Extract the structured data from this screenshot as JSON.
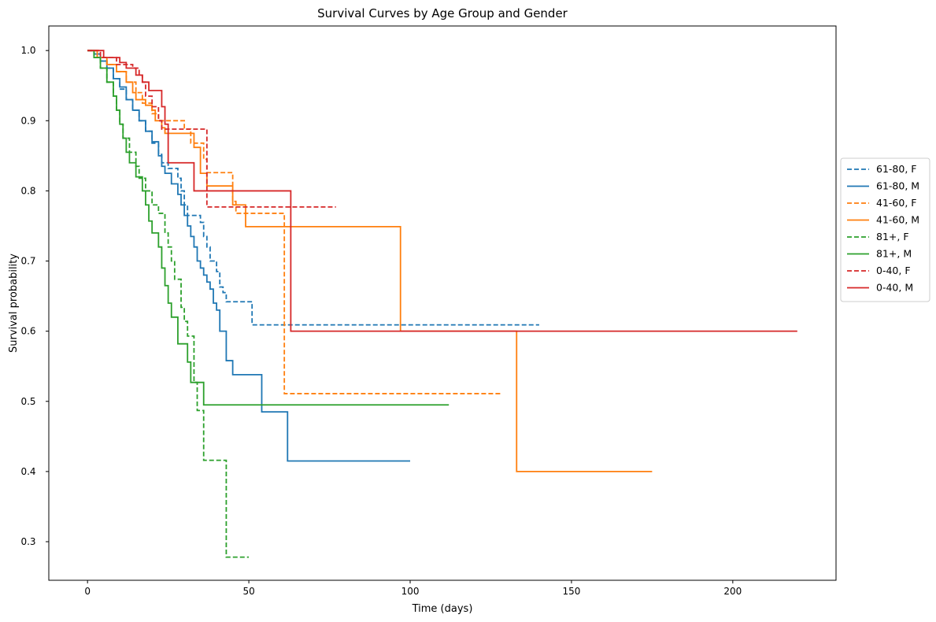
{
  "chart_data": {
    "type": "line",
    "subtype": "step",
    "title": "Survival Curves by Age Group and Gender",
    "xlabel": "Time (days)",
    "ylabel": "Survival probability",
    "xlim": [
      -12,
      232
    ],
    "ylim": [
      0.245,
      1.035
    ],
    "xticks": [
      0,
      50,
      100,
      150,
      200
    ],
    "yticks": [
      0.3,
      0.4,
      0.5,
      0.6,
      0.7,
      0.8,
      0.9,
      1.0
    ],
    "grid": false,
    "legend_position": "right outside",
    "series": [
      {
        "name": "61-80, F",
        "color": "#1f77b4",
        "dash": "dashed",
        "points": [
          [
            0,
            1.0
          ],
          [
            2,
            0.995
          ],
          [
            4,
            0.985
          ],
          [
            6,
            0.975
          ],
          [
            8,
            0.96
          ],
          [
            10,
            0.945
          ],
          [
            12,
            0.93
          ],
          [
            14,
            0.915
          ],
          [
            16,
            0.9
          ],
          [
            18,
            0.885
          ],
          [
            20,
            0.868
          ],
          [
            22,
            0.852
          ],
          [
            23,
            0.84
          ],
          [
            25,
            0.832
          ],
          [
            28,
            0.818
          ],
          [
            29,
            0.8
          ],
          [
            30,
            0.78
          ],
          [
            31,
            0.765
          ],
          [
            35,
            0.755
          ],
          [
            36,
            0.735
          ],
          [
            37,
            0.72
          ],
          [
            38,
            0.7
          ],
          [
            40,
            0.685
          ],
          [
            41,
            0.663
          ],
          [
            42,
            0.655
          ],
          [
            43,
            0.642
          ],
          [
            51,
            0.609
          ],
          [
            140,
            0.609
          ]
        ]
      },
      {
        "name": "61-80, M",
        "color": "#1f77b4",
        "dash": "solid",
        "points": [
          [
            0,
            1.0
          ],
          [
            2,
            0.995
          ],
          [
            4,
            0.985
          ],
          [
            6,
            0.975
          ],
          [
            8,
            0.96
          ],
          [
            10,
            0.948
          ],
          [
            12,
            0.93
          ],
          [
            14,
            0.915
          ],
          [
            16,
            0.9
          ],
          [
            18,
            0.885
          ],
          [
            20,
            0.87
          ],
          [
            22,
            0.85
          ],
          [
            23,
            0.835
          ],
          [
            24,
            0.825
          ],
          [
            26,
            0.81
          ],
          [
            28,
            0.795
          ],
          [
            29,
            0.78
          ],
          [
            30,
            0.765
          ],
          [
            31,
            0.75
          ],
          [
            32,
            0.735
          ],
          [
            33,
            0.72
          ],
          [
            34,
            0.7
          ],
          [
            35,
            0.69
          ],
          [
            36,
            0.68
          ],
          [
            37,
            0.67
          ],
          [
            38,
            0.66
          ],
          [
            39,
            0.64
          ],
          [
            40,
            0.63
          ],
          [
            41,
            0.6
          ],
          [
            43,
            0.558
          ],
          [
            45,
            0.538
          ],
          [
            54,
            0.485
          ],
          [
            62,
            0.415
          ],
          [
            100,
            0.415
          ]
        ]
      },
      {
        "name": "41-60, F",
        "color": "#ff7f0e",
        "dash": "dashed",
        "points": [
          [
            0,
            1.0
          ],
          [
            3,
            0.99
          ],
          [
            6,
            0.98
          ],
          [
            9,
            0.97
          ],
          [
            12,
            0.955
          ],
          [
            15,
            0.94
          ],
          [
            17,
            0.925
          ],
          [
            20,
            0.91
          ],
          [
            22,
            0.9
          ],
          [
            30,
            0.888
          ],
          [
            32,
            0.868
          ],
          [
            36,
            0.845
          ],
          [
            37,
            0.826
          ],
          [
            45,
            0.785
          ],
          [
            46,
            0.768
          ],
          [
            61,
            0.511
          ],
          [
            128,
            0.511
          ]
        ]
      },
      {
        "name": "41-60, M",
        "color": "#ff7f0e",
        "dash": "solid",
        "points": [
          [
            0,
            1.0
          ],
          [
            3,
            0.99
          ],
          [
            6,
            0.98
          ],
          [
            9,
            0.97
          ],
          [
            12,
            0.955
          ],
          [
            14,
            0.94
          ],
          [
            15,
            0.93
          ],
          [
            18,
            0.922
          ],
          [
            20,
            0.915
          ],
          [
            21,
            0.9
          ],
          [
            23,
            0.89
          ],
          [
            24,
            0.882
          ],
          [
            33,
            0.862
          ],
          [
            35,
            0.825
          ],
          [
            37,
            0.807
          ],
          [
            45,
            0.78
          ],
          [
            49,
            0.749
          ],
          [
            97,
            0.6
          ],
          [
            133,
            0.4
          ],
          [
            175,
            0.4
          ]
        ]
      },
      {
        "name": "81+, F",
        "color": "#2ca02c",
        "dash": "dashed",
        "points": [
          [
            0,
            1.0
          ],
          [
            2,
            0.99
          ],
          [
            4,
            0.975
          ],
          [
            6,
            0.955
          ],
          [
            8,
            0.935
          ],
          [
            9,
            0.915
          ],
          [
            10,
            0.895
          ],
          [
            11,
            0.875
          ],
          [
            13,
            0.855
          ],
          [
            15,
            0.835
          ],
          [
            16,
            0.818
          ],
          [
            18,
            0.8
          ],
          [
            20,
            0.78
          ],
          [
            22,
            0.768
          ],
          [
            24,
            0.74
          ],
          [
            25,
            0.72
          ],
          [
            26,
            0.7
          ],
          [
            27,
            0.674
          ],
          [
            29,
            0.634
          ],
          [
            30,
            0.614
          ],
          [
            31,
            0.593
          ],
          [
            33,
            0.527
          ],
          [
            34,
            0.487
          ],
          [
            36,
            0.416
          ],
          [
            43,
            0.278
          ],
          [
            50,
            0.278
          ]
        ]
      },
      {
        "name": "81+, M",
        "color": "#2ca02c",
        "dash": "solid",
        "points": [
          [
            0,
            1.0
          ],
          [
            2,
            0.99
          ],
          [
            4,
            0.975
          ],
          [
            6,
            0.955
          ],
          [
            8,
            0.935
          ],
          [
            9,
            0.915
          ],
          [
            10,
            0.895
          ],
          [
            11,
            0.875
          ],
          [
            12,
            0.855
          ],
          [
            13,
            0.84
          ],
          [
            15,
            0.82
          ],
          [
            17,
            0.8
          ],
          [
            18,
            0.78
          ],
          [
            19,
            0.757
          ],
          [
            20,
            0.74
          ],
          [
            22,
            0.72
          ],
          [
            23,
            0.69
          ],
          [
            24,
            0.665
          ],
          [
            25,
            0.64
          ],
          [
            26,
            0.62
          ],
          [
            28,
            0.582
          ],
          [
            31,
            0.556
          ],
          [
            32,
            0.527
          ],
          [
            36,
            0.495
          ],
          [
            112,
            0.495
          ]
        ]
      },
      {
        "name": "0-40, F",
        "color": "#d62728",
        "dash": "dashed",
        "points": [
          [
            0,
            1.0
          ],
          [
            4,
            0.99
          ],
          [
            9,
            0.98
          ],
          [
            14,
            0.975
          ],
          [
            16,
            0.965
          ],
          [
            17,
            0.955
          ],
          [
            18,
            0.935
          ],
          [
            20,
            0.92
          ],
          [
            22,
            0.9
          ],
          [
            23,
            0.888
          ],
          [
            37,
            0.777
          ],
          [
            77,
            0.777
          ]
        ]
      },
      {
        "name": "0-40, M",
        "color": "#d62728",
        "dash": "solid",
        "points": [
          [
            0,
            1.0
          ],
          [
            5,
            0.99
          ],
          [
            10,
            0.983
          ],
          [
            12,
            0.975
          ],
          [
            15,
            0.965
          ],
          [
            17,
            0.955
          ],
          [
            19,
            0.943
          ],
          [
            23,
            0.92
          ],
          [
            24,
            0.895
          ],
          [
            25,
            0.84
          ],
          [
            33,
            0.8
          ],
          [
            63,
            0.6
          ],
          [
            220,
            0.6
          ]
        ]
      }
    ]
  }
}
